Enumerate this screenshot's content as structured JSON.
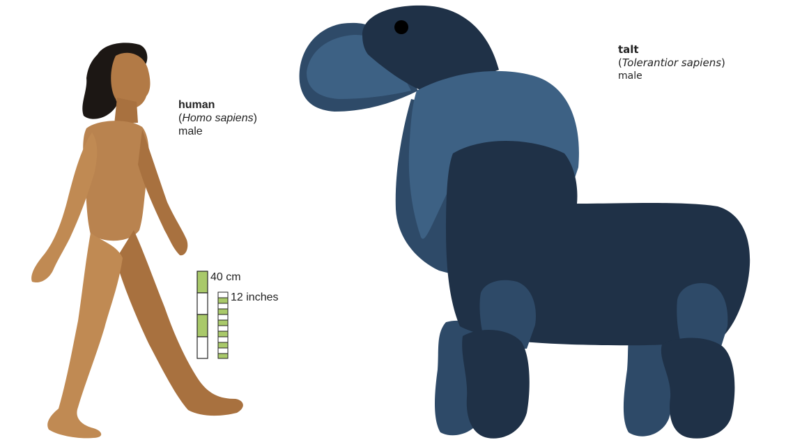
{
  "human": {
    "common_name": "human",
    "scientific_name": "Homo sapiens",
    "sex": "male"
  },
  "talt": {
    "common_name": "talt",
    "scientific_name": "Tolerantior sapiens",
    "sex": "male"
  },
  "scale_bar": {
    "metric_label": "40 cm",
    "imperial_label": "12 inches"
  },
  "colors": {
    "talt_dark": "#1f3147",
    "talt_mid": "#2e4a68",
    "talt_light": "#3d6184",
    "scale_green": "#a9c96a",
    "skin": "#b9834f"
  }
}
